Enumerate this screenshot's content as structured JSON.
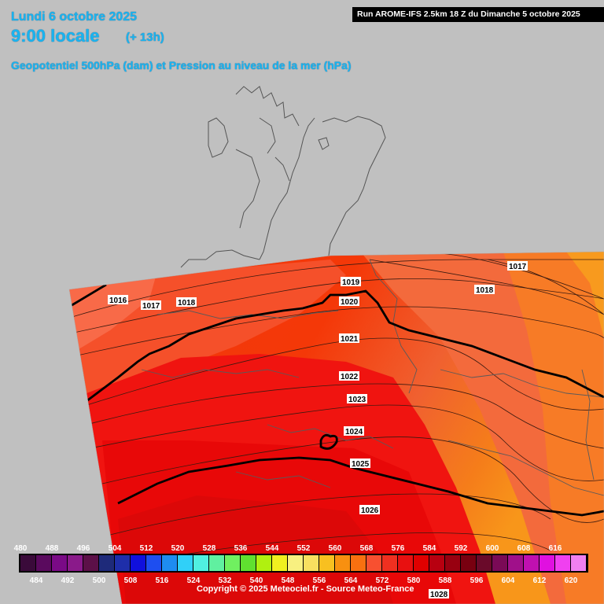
{
  "header": {
    "date": "Lundi 6 octobre 2025",
    "local_time": "9:00 locale",
    "lead": "(+ 13h)",
    "parameter": "Geopotentiel 500hPa (dam) et Pression au niveau de la mer (hPa)",
    "run": "Run AROME-IFS 2.5km 18 Z du Dimanche 5 octobre 2025"
  },
  "isobars": [
    "1016",
    "1017",
    "1018",
    "1019",
    "1020",
    "1021",
    "1022",
    "1023",
    "1024",
    "1025",
    "1026",
    "1017",
    "1018",
    "1028"
  ],
  "scale": {
    "top_labels": [
      "480",
      "488",
      "496",
      "504",
      "512",
      "520",
      "528",
      "536",
      "544",
      "552",
      "560",
      "568",
      "576",
      "584",
      "592",
      "600",
      "608",
      "616"
    ],
    "bottom_labels": [
      "484",
      "492",
      "500",
      "508",
      "516",
      "524",
      "532",
      "540",
      "548",
      "556",
      "564",
      "572",
      "580",
      "588",
      "596",
      "604",
      "612",
      "620"
    ],
    "colors": [
      "#3a0a3a",
      "#5a0a5e",
      "#7a0a86",
      "#8a1a8a",
      "#5c1048",
      "#1e2a7a",
      "#1e2eaa",
      "#1010dd",
      "#1e4ef0",
      "#1e8cf0",
      "#30d0f8",
      "#50f0e0",
      "#60f0a0",
      "#70f060",
      "#60e030",
      "#b0f010",
      "#f0f020",
      "#f8f080",
      "#f8e060",
      "#f8c020",
      "#f89010",
      "#f87010",
      "#f85030",
      "#f03020",
      "#e81010",
      "#e00000",
      "#b80010",
      "#980010",
      "#780010",
      "#6a0a2a",
      "#7a0a56",
      "#a0108a",
      "#c010b0",
      "#e010e0",
      "#f040f0",
      "#f080f0"
    ]
  },
  "footer": {
    "copyright": "Copyright © 2025 Meteociel.fr - Source Meteo-France"
  }
}
